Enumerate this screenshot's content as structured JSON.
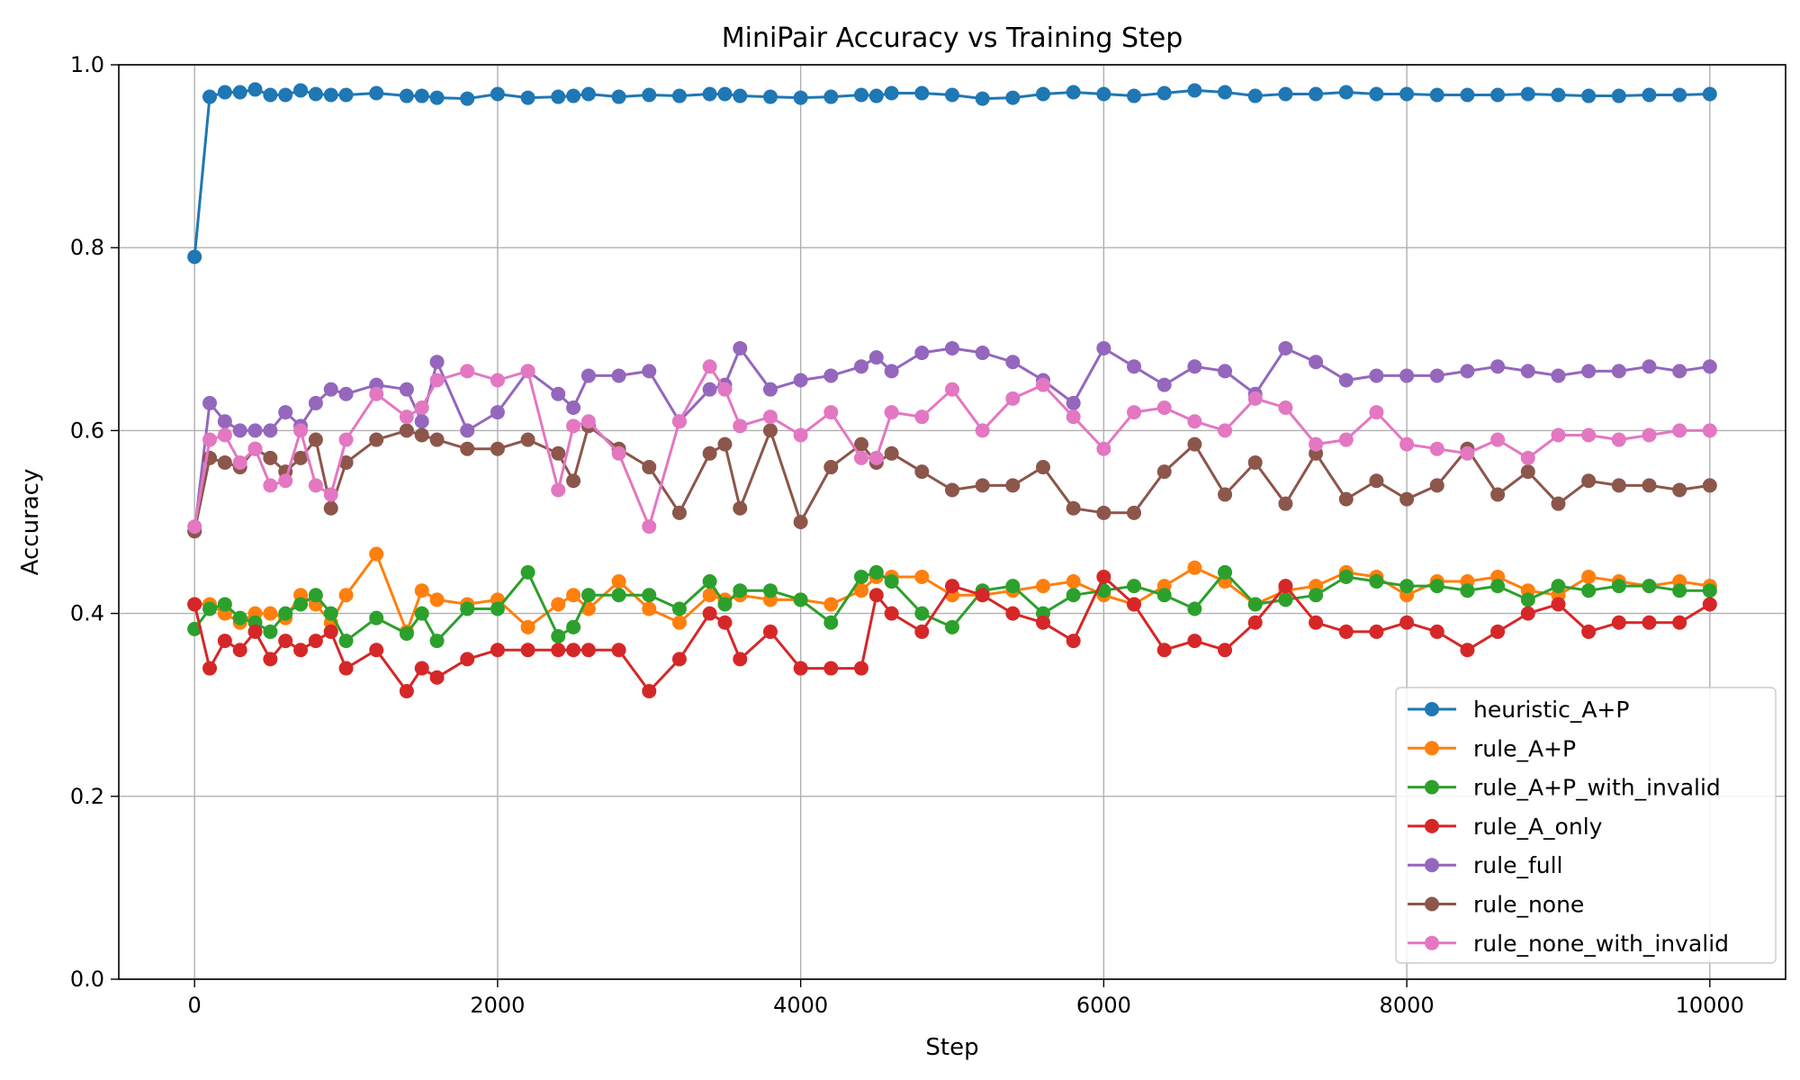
{
  "chart_data": {
    "type": "line",
    "title": "MiniPair Accuracy vs Training Step",
    "xlabel": "Step",
    "ylabel": "Accuracy",
    "xlim": [
      -500,
      10500
    ],
    "ylim": [
      0.0,
      1.0
    ],
    "xticks": [
      0,
      2000,
      4000,
      6000,
      8000,
      10000
    ],
    "yticks": [
      0.0,
      0.2,
      0.4,
      0.6,
      0.8,
      1.0
    ],
    "xtick_labels": [
      "0",
      "2000",
      "4000",
      "6000",
      "8000",
      "10000"
    ],
    "ytick_labels": [
      "0.0",
      "0.2",
      "0.4",
      "0.6",
      "0.8",
      "1.0"
    ],
    "grid": true,
    "legend_position": "lower-right",
    "x": [
      0,
      100,
      200,
      300,
      400,
      500,
      600,
      700,
      800,
      900,
      1000,
      1200,
      1400,
      1500,
      1600,
      1800,
      2000,
      2200,
      2400,
      2500,
      2600,
      2800,
      3000,
      3200,
      3400,
      3500,
      3600,
      3800,
      4000,
      4200,
      4400,
      4500,
      4600,
      4800,
      5000,
      5200,
      5400,
      5600,
      5800,
      6000,
      6200,
      6400,
      6600,
      6800,
      7000,
      7200,
      7400,
      7600,
      7800,
      8000,
      8200,
      8400,
      8600,
      8800,
      9000,
      9200,
      9400,
      9600,
      9800,
      10000
    ],
    "series": [
      {
        "name": "heuristic_A+P",
        "color": "#1f77b4",
        "values": [
          0.79,
          0.965,
          0.97,
          0.97,
          0.973,
          0.967,
          0.967,
          0.972,
          0.968,
          0.967,
          0.967,
          0.969,
          0.966,
          0.966,
          0.964,
          0.963,
          0.968,
          0.964,
          0.965,
          0.966,
          0.968,
          0.965,
          0.967,
          0.966,
          0.968,
          0.968,
          0.966,
          0.965,
          0.964,
          0.965,
          0.967,
          0.966,
          0.969,
          0.969,
          0.967,
          0.963,
          0.964,
          0.968,
          0.97,
          0.968,
          0.966,
          0.969,
          0.972,
          0.97,
          0.966,
          0.968,
          0.968,
          0.97,
          0.968,
          0.968,
          0.967,
          0.967,
          0.967,
          0.968,
          0.967,
          0.966,
          0.966,
          0.967,
          0.967,
          0.968
        ]
      },
      {
        "name": "rule_A+P",
        "color": "#ff7f0e",
        "values": [
          0.41,
          0.41,
          0.4,
          0.39,
          0.4,
          0.4,
          0.395,
          0.42,
          0.41,
          0.39,
          0.42,
          0.465,
          0.38,
          0.425,
          0.415,
          0.41,
          0.415,
          0.385,
          0.41,
          0.42,
          0.405,
          0.435,
          0.405,
          0.39,
          0.42,
          0.415,
          0.42,
          0.415,
          0.415,
          0.41,
          0.425,
          0.44,
          0.44,
          0.44,
          0.42,
          0.42,
          0.425,
          0.43,
          0.435,
          0.42,
          0.41,
          0.43,
          0.45,
          0.435,
          0.41,
          0.425,
          0.43,
          0.445,
          0.44,
          0.42,
          0.435,
          0.435,
          0.44,
          0.425,
          0.42,
          0.44,
          0.435,
          0.43,
          0.435,
          0.43
        ]
      },
      {
        "name": "rule_A+P_with_invalid",
        "color": "#2ca02c",
        "values": [
          0.383,
          0.405,
          0.41,
          0.395,
          0.39,
          0.38,
          0.4,
          0.41,
          0.42,
          0.4,
          0.37,
          0.395,
          0.378,
          0.4,
          0.37,
          0.405,
          0.405,
          0.445,
          0.375,
          0.385,
          0.42,
          0.42,
          0.42,
          0.405,
          0.435,
          0.41,
          0.425,
          0.425,
          0.415,
          0.39,
          0.44,
          0.445,
          0.435,
          0.4,
          0.385,
          0.425,
          0.43,
          0.4,
          0.42,
          0.425,
          0.43,
          0.42,
          0.405,
          0.445,
          0.41,
          0.415,
          0.42,
          0.44,
          0.435,
          0.43,
          0.43,
          0.425,
          0.43,
          0.415,
          0.43,
          0.425,
          0.43,
          0.43,
          0.425,
          0.425
        ]
      },
      {
        "name": "rule_A_only",
        "color": "#d62728",
        "values": [
          0.41,
          0.34,
          0.37,
          0.36,
          0.38,
          0.35,
          0.37,
          0.36,
          0.37,
          0.38,
          0.34,
          0.36,
          0.315,
          0.34,
          0.33,
          0.35,
          0.36,
          0.36,
          0.36,
          0.36,
          0.36,
          0.36,
          0.315,
          0.35,
          0.4,
          0.39,
          0.35,
          0.38,
          0.34,
          0.34,
          0.34,
          0.42,
          0.4,
          0.38,
          0.43,
          0.42,
          0.4,
          0.39,
          0.37,
          0.44,
          0.41,
          0.36,
          0.37,
          0.36,
          0.39,
          0.43,
          0.39,
          0.38,
          0.38,
          0.39,
          0.38,
          0.36,
          0.38,
          0.4,
          0.41,
          0.38,
          0.39,
          0.39,
          0.39,
          0.41
        ]
      },
      {
        "name": "rule_full",
        "color": "#9467bd",
        "values": [
          0.49,
          0.63,
          0.61,
          0.6,
          0.6,
          0.6,
          0.62,
          0.605,
          0.63,
          0.645,
          0.64,
          0.65,
          0.645,
          0.61,
          0.675,
          0.6,
          0.62,
          0.665,
          0.64,
          0.625,
          0.66,
          0.66,
          0.665,
          0.61,
          0.645,
          0.65,
          0.69,
          0.645,
          0.655,
          0.66,
          0.67,
          0.68,
          0.665,
          0.685,
          0.69,
          0.685,
          0.675,
          0.655,
          0.63,
          0.69,
          0.67,
          0.65,
          0.67,
          0.665,
          0.64,
          0.69,
          0.675,
          0.655,
          0.66,
          0.66,
          0.66,
          0.665,
          0.67,
          0.665,
          0.66,
          0.665,
          0.665,
          0.67,
          0.665,
          0.67
        ]
      },
      {
        "name": "rule_none",
        "color": "#8c564b",
        "values": [
          0.49,
          0.57,
          0.565,
          0.56,
          0.58,
          0.57,
          0.555,
          0.57,
          0.59,
          0.515,
          0.565,
          0.59,
          0.6,
          0.595,
          0.59,
          0.58,
          0.58,
          0.59,
          0.575,
          0.545,
          0.605,
          0.58,
          0.56,
          0.51,
          0.575,
          0.585,
          0.515,
          0.6,
          0.5,
          0.56,
          0.585,
          0.565,
          0.575,
          0.555,
          0.535,
          0.54,
          0.54,
          0.56,
          0.515,
          0.51,
          0.51,
          0.555,
          0.585,
          0.53,
          0.565,
          0.52,
          0.575,
          0.525,
          0.545,
          0.525,
          0.54,
          0.58,
          0.53,
          0.555,
          0.52,
          0.545,
          0.54,
          0.54,
          0.535,
          0.54
        ]
      },
      {
        "name": "rule_none_with_invalid",
        "color": "#e377c2",
        "values": [
          0.495,
          0.59,
          0.595,
          0.565,
          0.58,
          0.54,
          0.545,
          0.6,
          0.54,
          0.53,
          0.59,
          0.64,
          0.615,
          0.625,
          0.655,
          0.665,
          0.655,
          0.665,
          0.535,
          0.605,
          0.61,
          0.575,
          0.495,
          0.61,
          0.67,
          0.645,
          0.605,
          0.615,
          0.595,
          0.62,
          0.57,
          0.57,
          0.62,
          0.615,
          0.645,
          0.6,
          0.635,
          0.65,
          0.615,
          0.58,
          0.62,
          0.625,
          0.61,
          0.6,
          0.635,
          0.625,
          0.585,
          0.59,
          0.62,
          0.585,
          0.58,
          0.575,
          0.59,
          0.57,
          0.595,
          0.595,
          0.59,
          0.595,
          0.6,
          0.6
        ]
      }
    ]
  }
}
